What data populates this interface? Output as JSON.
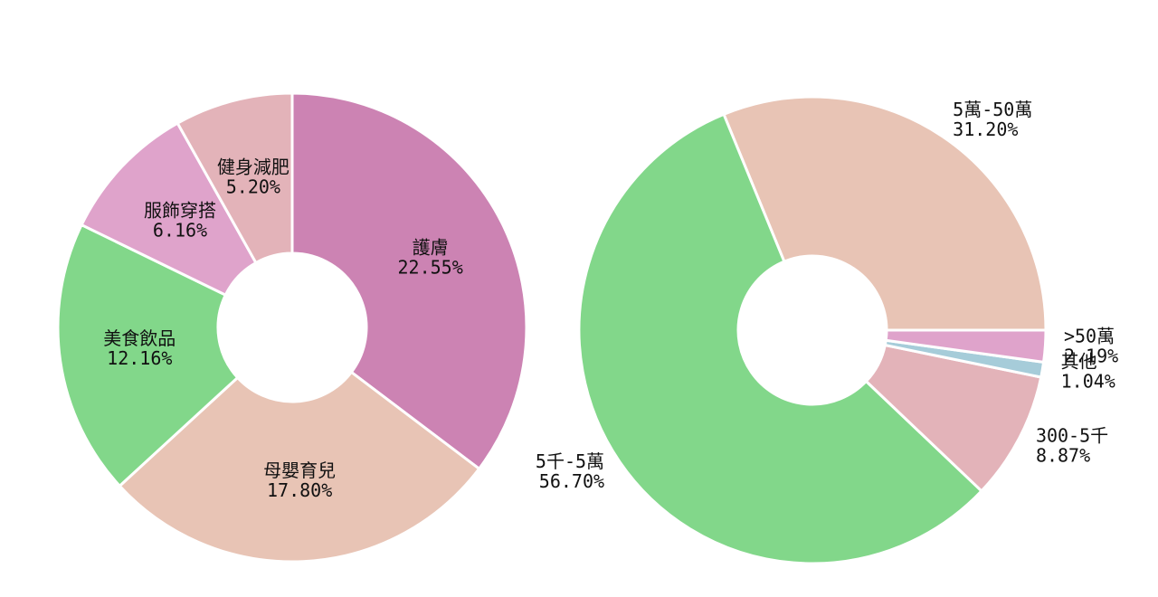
{
  "chart_data": [
    {
      "type": "pie",
      "startangle": 90,
      "counterclock": false,
      "categories": [
        "護膚",
        "母嬰育兒",
        "美食飲品",
        "服飾穿搭",
        "健身減肥"
      ],
      "values": [
        22.55,
        17.8,
        12.16,
        6.16,
        5.2
      ],
      "value_labels": [
        "22.55%",
        "17.80%",
        "12.16%",
        "6.16%",
        "5.20%"
      ],
      "colors": [
        "#cc83b3",
        "#e8c4b5",
        "#82d78a",
        "#dfa3cb",
        "#e3b3b9"
      ],
      "labels_inside": true
    },
    {
      "type": "pie",
      "startangle": 0,
      "counterclock": true,
      "categories": [
        "5萬-50萬",
        "5千-5萬",
        "300-5千",
        "其他",
        ">50萬"
      ],
      "values": [
        31.2,
        56.7,
        8.87,
        1.04,
        2.19
      ],
      "value_labels": [
        "31.20%",
        "56.70%",
        "8.87%",
        "1.04%",
        "2.19%"
      ],
      "colors": [
        "#e8c4b5",
        "#82d78a",
        "#e3b3b9",
        "#a6ccd9",
        "#dfa3cb"
      ],
      "labels_inside": false
    }
  ]
}
